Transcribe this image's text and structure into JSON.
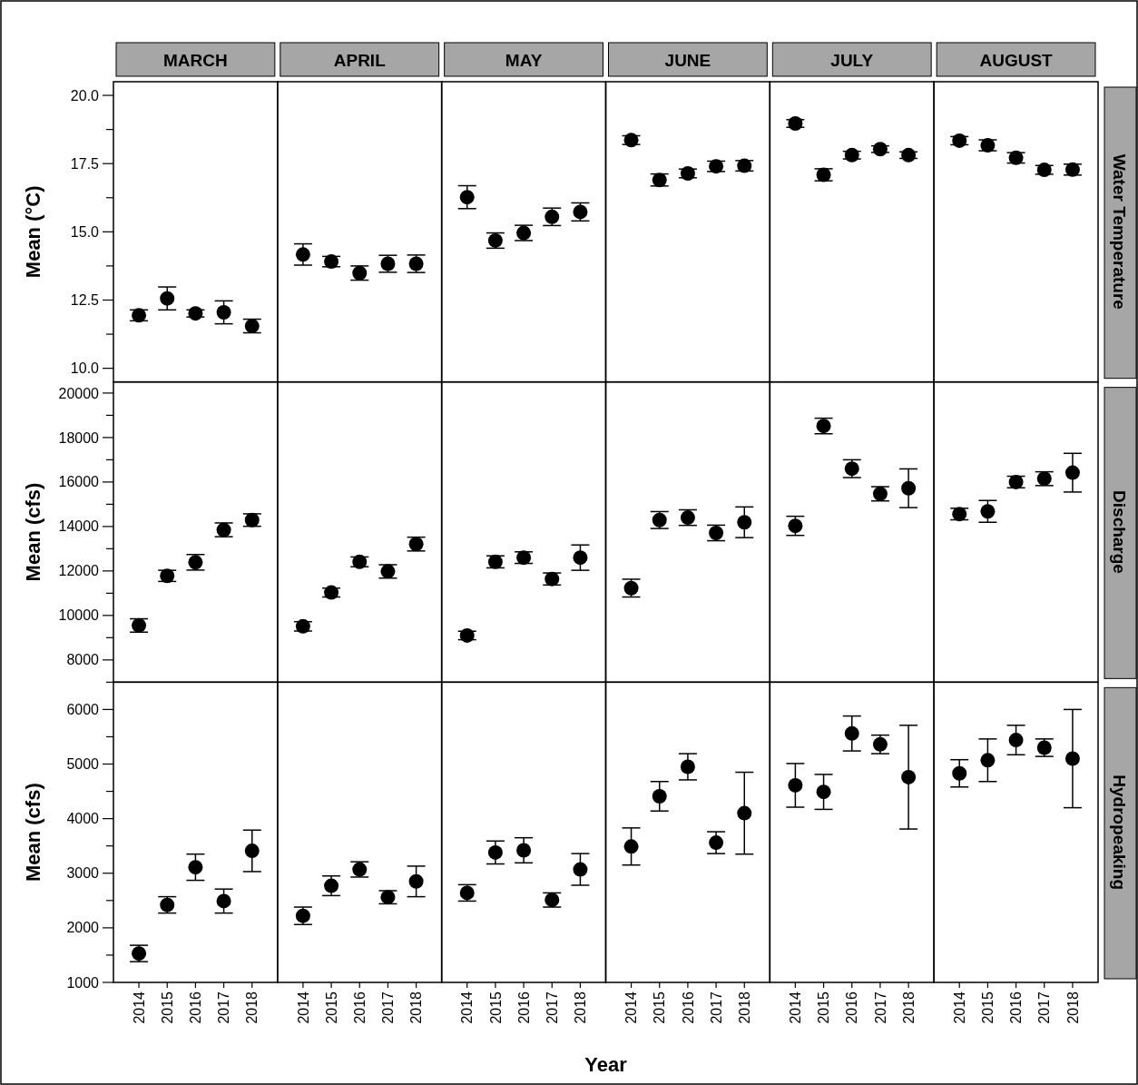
{
  "chart_data": [
    {
      "type": "scatter",
      "title": "MARCH",
      "ylabel": "Mean (°C)",
      "categories": [
        "2014",
        "2015",
        "2016",
        "2017",
        "2018"
      ],
      "series": [
        {
          "color": "#000000",
          "values": [
            11.94,
            12.56,
            12.01,
            12.05,
            11.55
          ],
          "errors": [
            0.2,
            0.42,
            0.13,
            0.42,
            0.25
          ]
        }
      ],
      "ylim": [
        9.5,
        20.5
      ],
      "yticks": [
        {
          "value": 10,
          "label": "10.0"
        },
        {
          "value": 11.25,
          "label": null
        },
        12.5,
        {
          "value": 13.75,
          "label": null
        },
        {
          "value": 15,
          "label": "15.0"
        },
        {
          "value": 16.25,
          "label": null
        },
        17.5,
        {
          "value": 18.75,
          "label": null
        },
        {
          "value": 20,
          "label": "20.0"
        }
      ],
      "tick_labels": "y",
      "marker": "circle",
      "grid": false
    },
    {
      "type": "scatter",
      "title": "APRIL",
      "categories": [
        "2014",
        "2015",
        "2016",
        "2017",
        "2018"
      ],
      "series": [
        {
          "color": "#000000",
          "values": [
            14.17,
            13.91,
            13.49,
            13.83,
            13.83
          ],
          "errors": [
            0.39,
            0.19,
            0.26,
            0.31,
            0.32
          ]
        }
      ],
      "ylim": [
        9.5,
        20.5
      ],
      "tick_labels": false,
      "marker": "circle",
      "grid": false
    },
    {
      "type": "scatter",
      "title": "MAY",
      "categories": [
        "2014",
        "2015",
        "2016",
        "2017",
        "2018"
      ],
      "series": [
        {
          "color": "#000000",
          "values": [
            16.27,
            14.68,
            14.96,
            15.55,
            15.73
          ],
          "errors": [
            0.42,
            0.28,
            0.28,
            0.32,
            0.33
          ]
        }
      ],
      "ylim": [
        9.5,
        20.5
      ],
      "tick_labels": false,
      "marker": "circle",
      "grid": false
    },
    {
      "type": "scatter",
      "title": "JUNE",
      "categories": [
        "2014",
        "2015",
        "2016",
        "2017",
        "2018"
      ],
      "series": [
        {
          "color": "#000000",
          "values": [
            18.36,
            16.9,
            17.14,
            17.4,
            17.42
          ],
          "errors": [
            0.16,
            0.22,
            0.16,
            0.19,
            0.19
          ]
        }
      ],
      "ylim": [
        9.5,
        20.5
      ],
      "tick_labels": false,
      "marker": "circle",
      "grid": false
    },
    {
      "type": "scatter",
      "title": "JULY",
      "categories": [
        "2014",
        "2015",
        "2016",
        "2017",
        "2018"
      ],
      "series": [
        {
          "color": "#000000",
          "values": [
            18.97,
            17.09,
            17.81,
            18.03,
            17.81
          ],
          "errors": [
            0.14,
            0.22,
            0.14,
            0.12,
            0.12
          ]
        }
      ],
      "ylim": [
        9.5,
        20.5
      ],
      "tick_labels": false,
      "marker": "circle",
      "grid": false
    },
    {
      "type": "scatter",
      "title": "AUGUST",
      "y2label": "Water Temperature",
      "categories": [
        "2014",
        "2015",
        "2016",
        "2017",
        "2018"
      ],
      "series": [
        {
          "color": "#000000",
          "values": [
            18.34,
            18.17,
            17.71,
            17.27,
            17.28
          ],
          "errors": [
            0.15,
            0.2,
            0.19,
            0.16,
            0.2
          ]
        }
      ],
      "ylim": [
        9.5,
        20.5
      ],
      "tick_labels": false,
      "marker": "circle",
      "grid": false
    },
    {
      "type": "scatter",
      "ylabel": "Mean (cfs)",
      "categories": [
        "2014",
        "2015",
        "2016",
        "2017",
        "2018"
      ],
      "series": [
        {
          "color": "#000000",
          "values": [
            9550,
            11780,
            12390,
            13850,
            14290
          ],
          "errors": [
            300,
            250,
            350,
            310,
            280
          ]
        }
      ],
      "ylim": [
        7000,
        20500
      ],
      "yticks": [
        {
          "value": 7000,
          "label": null
        },
        8000,
        {
          "value": 9000,
          "label": null
        },
        10000,
        {
          "value": 11000,
          "label": null
        },
        12000,
        {
          "value": 13000,
          "label": null
        },
        14000,
        {
          "value": 15000,
          "label": null
        },
        16000,
        {
          "value": 17000,
          "label": null
        },
        18000,
        {
          "value": 19000,
          "label": null
        },
        20000
      ],
      "tick_labels": "y",
      "marker": "circle",
      "grid": false
    },
    {
      "type": "scatter",
      "categories": [
        "2014",
        "2015",
        "2016",
        "2017",
        "2018"
      ],
      "series": [
        {
          "color": "#000000",
          "values": [
            9510,
            11030,
            12410,
            11980,
            13210
          ],
          "errors": [
            210,
            200,
            220,
            300,
            310
          ]
        }
      ],
      "ylim": [
        7000,
        20500
      ],
      "tick_labels": false,
      "marker": "circle",
      "grid": false
    },
    {
      "type": "scatter",
      "categories": [
        "2014",
        "2015",
        "2016",
        "2017",
        "2018"
      ],
      "series": [
        {
          "color": "#000000",
          "values": [
            9100,
            12410,
            12600,
            11640,
            12600
          ],
          "errors": [
            190,
            270,
            260,
            270,
            570
          ]
        }
      ],
      "ylim": [
        7000,
        20500
      ],
      "tick_labels": false,
      "marker": "circle",
      "grid": false
    },
    {
      "type": "scatter",
      "categories": [
        "2014",
        "2015",
        "2016",
        "2017",
        "2018"
      ],
      "series": [
        {
          "color": "#000000",
          "values": [
            11230,
            14290,
            14400,
            13710,
            14190
          ],
          "errors": [
            400,
            380,
            350,
            350,
            690
          ]
        }
      ],
      "ylim": [
        7000,
        20500
      ],
      "tick_labels": false,
      "marker": "circle",
      "grid": false
    },
    {
      "type": "scatter",
      "categories": [
        "2014",
        "2015",
        "2016",
        "2017",
        "2018"
      ],
      "series": [
        {
          "color": "#000000",
          "values": [
            14030,
            18520,
            16600,
            15470,
            15720
          ],
          "errors": [
            430,
            350,
            400,
            320,
            870
          ]
        }
      ],
      "ylim": [
        7000,
        20500
      ],
      "tick_labels": false,
      "marker": "circle",
      "grid": false
    },
    {
      "type": "scatter",
      "y2label": "Discharge",
      "categories": [
        "2014",
        "2015",
        "2016",
        "2017",
        "2018"
      ],
      "series": [
        {
          "color": "#000000",
          "values": [
            14560,
            14680,
            16000,
            16150,
            16420
          ],
          "errors": [
            260,
            490,
            260,
            310,
            870
          ]
        }
      ],
      "ylim": [
        7000,
        20500
      ],
      "tick_labels": false,
      "marker": "circle",
      "grid": false
    },
    {
      "type": "scatter",
      "ylabel": "Mean (cfs)",
      "categories": [
        "2014",
        "2015",
        "2016",
        "2017",
        "2018"
      ],
      "series": [
        {
          "color": "#000000",
          "values": [
            1530,
            2420,
            3110,
            2490,
            3410
          ],
          "errors": [
            150,
            150,
            240,
            220,
            380
          ]
        }
      ],
      "ylim": [
        1000,
        6500
      ],
      "yticks": [
        1000,
        {
          "value": 1500,
          "label": null
        },
        2000,
        {
          "value": 2500,
          "label": null
        },
        3000,
        {
          "value": 3500,
          "label": null
        },
        4000,
        {
          "value": 4500,
          "label": null
        },
        5000,
        {
          "value": 5500,
          "label": null
        },
        6000
      ],
      "marker": "circle",
      "grid": false
    },
    {
      "type": "scatter",
      "categories": [
        "2014",
        "2015",
        "2016",
        "2017",
        "2018"
      ],
      "series": [
        {
          "color": "#000000",
          "values": [
            2220,
            2770,
            3070,
            2560,
            2850
          ],
          "errors": [
            160,
            180,
            140,
            120,
            280
          ]
        }
      ],
      "ylim": [
        1000,
        6500
      ],
      "tick_labels": "x",
      "marker": "circle",
      "grid": false
    },
    {
      "type": "scatter",
      "xlabel": "Year",
      "categories": [
        "2014",
        "2015",
        "2016",
        "2017",
        "2018"
      ],
      "series": [
        {
          "color": "#000000",
          "values": [
            2640,
            3380,
            3420,
            2510,
            3070
          ],
          "errors": [
            150,
            210,
            230,
            130,
            290
          ]
        }
      ],
      "ylim": [
        1000,
        6500
      ],
      "tick_labels": "x",
      "marker": "circle",
      "grid": false
    },
    {
      "type": "scatter",
      "categories": [
        "2014",
        "2015",
        "2016",
        "2017",
        "2018"
      ],
      "series": [
        {
          "color": "#000000",
          "values": [
            3490,
            4410,
            4950,
            3560,
            4100
          ],
          "errors": [
            340,
            270,
            240,
            200,
            750
          ]
        }
      ],
      "ylim": [
        1000,
        6500
      ],
      "tick_labels": "x",
      "marker": "circle",
      "grid": false
    },
    {
      "type": "scatter",
      "categories": [
        "2014",
        "2015",
        "2016",
        "2017",
        "2018"
      ],
      "series": [
        {
          "color": "#000000",
          "values": [
            4610,
            4490,
            5560,
            5360,
            4760
          ],
          "errors": [
            400,
            320,
            320,
            170,
            950
          ]
        }
      ],
      "ylim": [
        1000,
        6500
      ],
      "tick_labels": "x",
      "marker": "circle",
      "grid": false
    },
    {
      "type": "scatter",
      "y2label": "Hydropeaking",
      "categories": [
        "2014",
        "2015",
        "2016",
        "2017",
        "2018"
      ],
      "series": [
        {
          "color": "#000000",
          "values": [
            4830,
            5070,
            5440,
            5300,
            5100
          ],
          "errors": [
            250,
            390,
            270,
            160,
            900
          ]
        }
      ],
      "ylim": [
        1000,
        6500
      ],
      "tick_labels": "x",
      "marker": "circle",
      "grid": false
    }
  ]
}
